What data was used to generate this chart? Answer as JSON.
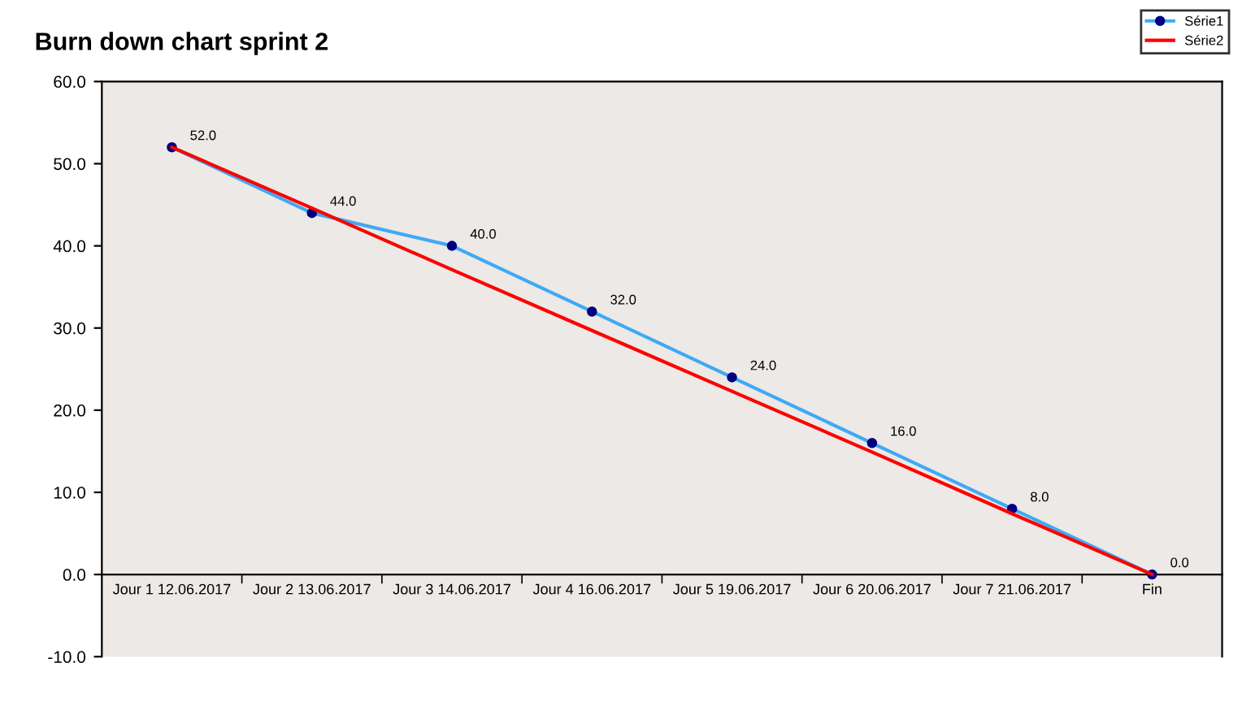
{
  "chart_data": {
    "type": "line",
    "title": "Burn down chart sprint 2",
    "categories": [
      "Jour 1 12.06.2017",
      "Jour 2 13.06.2017",
      "Jour 3 14.06.2017",
      "Jour 4 16.06.2017",
      "Jour 5 19.06.2017",
      "Jour 6 20.06.2017",
      "Jour 7 21.06.2017",
      "Fin"
    ],
    "series": [
      {
        "name": "Série1",
        "color": "#3fa9f5",
        "marker": "circle",
        "values": [
          52.0,
          44.0,
          40.0,
          32.0,
          24.0,
          16.0,
          8.0,
          0.0
        ],
        "value_labels": [
          "52.0",
          "44.0",
          "40.0",
          "32.0",
          "24.0",
          "16.0",
          "8.0",
          "0.0"
        ]
      },
      {
        "name": "Série2",
        "color": "#ff0000",
        "values": [
          52.0,
          44.6,
          37.1,
          29.7,
          22.3,
          14.9,
          7.4,
          0.0
        ]
      }
    ],
    "ylim": [
      -10,
      60
    ],
    "yticks": [
      {
        "value": -10,
        "label": "-10.0"
      },
      {
        "value": 0,
        "label": "0.0"
      },
      {
        "value": 10,
        "label": "10.0"
      },
      {
        "value": 20,
        "label": "20.0"
      },
      {
        "value": 30,
        "label": "30.0"
      },
      {
        "value": 40,
        "label": "40.0"
      },
      {
        "value": 50,
        "label": "50.0"
      },
      {
        "value": 60,
        "label": "60.0"
      }
    ],
    "legend": "top right",
    "grid": false
  }
}
